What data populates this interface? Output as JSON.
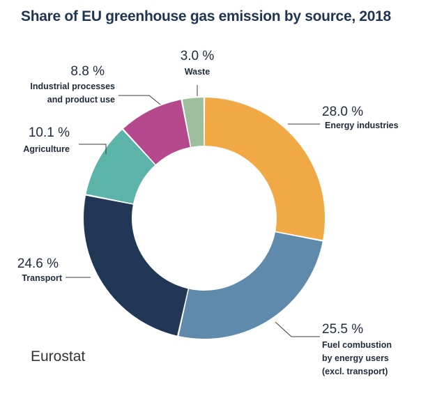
{
  "title": "Share of EU greenhouse gas emission by source, 2018",
  "source": "Eurostat",
  "chart_data": {
    "type": "pie",
    "variant": "donut",
    "title": "Share of EU greenhouse gas emission by source, 2018",
    "unit": "%",
    "slices": [
      {
        "label_lines": [
          "Energy industries"
        ],
        "value": 28.0,
        "value_label": "28.0 %",
        "color": "#f0a944"
      },
      {
        "label_lines": [
          "Fuel combustion",
          "by energy users",
          "(excl. transport)"
        ],
        "value": 25.5,
        "value_label": "25.5 %",
        "color": "#5f8aac"
      },
      {
        "label_lines": [
          "Transport"
        ],
        "value": 24.6,
        "value_label": "24.6 %",
        "color": "#213755"
      },
      {
        "label_lines": [
          "Agriculture"
        ],
        "value": 10.1,
        "value_label": "10.1 %",
        "color": "#5cb3aa"
      },
      {
        "label_lines": [
          "Industrial processes",
          "and product use"
        ],
        "value": 8.8,
        "value_label": "8.8 %",
        "color": "#b6488e"
      },
      {
        "label_lines": [
          "Waste"
        ],
        "value": 3.0,
        "value_label": "3.0 %",
        "color": "#9dbf9c"
      }
    ]
  }
}
